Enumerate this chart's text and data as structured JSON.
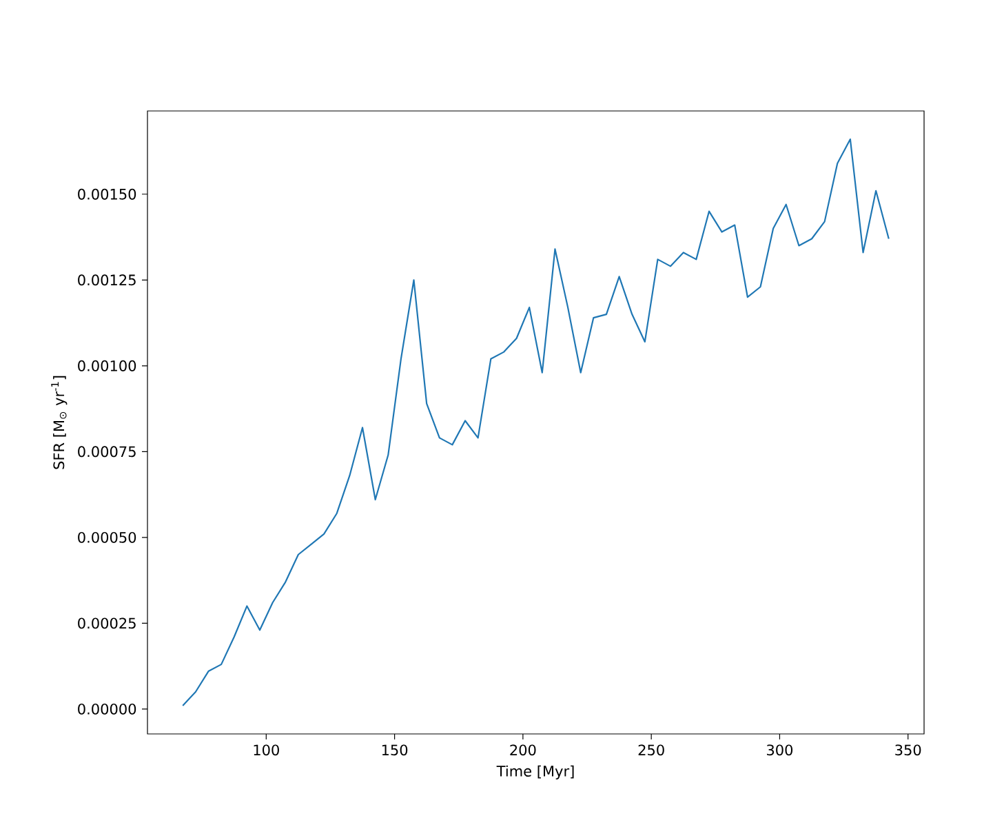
{
  "chart_data": {
    "type": "line",
    "xlabel": "Time  [Myr]",
    "ylabel": "SFR  [M$_{⊙}$ yr$^{-1}$]",
    "x": [
      67.5,
      72.5,
      77.5,
      82.5,
      87.5,
      92.5,
      97.5,
      102.5,
      107.5,
      112.5,
      117.5,
      122.5,
      127.5,
      132.5,
      137.5,
      142.5,
      147.5,
      152.5,
      157.5,
      162.5,
      167.5,
      172.5,
      177.5,
      182.5,
      187.5,
      192.5,
      197.5,
      202.5,
      207.5,
      212.5,
      217.5,
      222.5,
      227.5,
      232.5,
      237.5,
      242.5,
      247.5,
      252.5,
      257.5,
      262.5,
      267.5,
      272.5,
      277.5,
      282.5,
      287.5,
      292.5,
      297.5,
      302.5,
      307.5,
      312.5,
      317.5,
      322.5,
      327.5,
      332.5,
      337.5,
      342.5
    ],
    "series": [
      {
        "color": "#1f77b4",
        "values": [
          1e-05,
          5e-05,
          0.00011,
          0.00013,
          0.00021,
          0.0003,
          0.00023,
          0.00031,
          0.00037,
          0.00045,
          0.00048,
          0.00051,
          0.00057,
          0.00068,
          0.00082,
          0.00061,
          0.00074,
          0.00102,
          0.00125,
          0.00089,
          0.00079,
          0.00077,
          0.00084,
          0.00079,
          0.00102,
          0.00104,
          0.00108,
          0.00117,
          0.00098,
          0.00134,
          0.00117,
          0.00098,
          0.00114,
          0.00115,
          0.00126,
          0.00115,
          0.00107,
          0.00131,
          0.00129,
          0.00133,
          0.00131,
          0.00145,
          0.00139,
          0.00141,
          0.0012,
          0.00123,
          0.0014,
          0.00147,
          0.00135,
          0.00137,
          0.00142,
          0.00159,
          0.00166,
          0.00133,
          0.00151,
          0.00137
        ]
      }
    ],
    "xlim": [
      53.75,
      356.25
    ],
    "ylim": [
      -7.25e-05,
      0.0017425
    ],
    "xticks": [
      100,
      150,
      200,
      250,
      300,
      350
    ],
    "yticks": [
      {
        "value": 0,
        "label": "0.00000"
      },
      {
        "value": 0.00025,
        "label": "0.00025"
      },
      {
        "value": 0.0005,
        "label": "0.00050"
      },
      {
        "value": 0.00075,
        "label": "0.00075"
      },
      {
        "value": 0.001,
        "label": "0.00100"
      },
      {
        "value": 0.00125,
        "label": "0.00125"
      },
      {
        "value": 0.0015,
        "label": "0.00150"
      }
    ]
  }
}
